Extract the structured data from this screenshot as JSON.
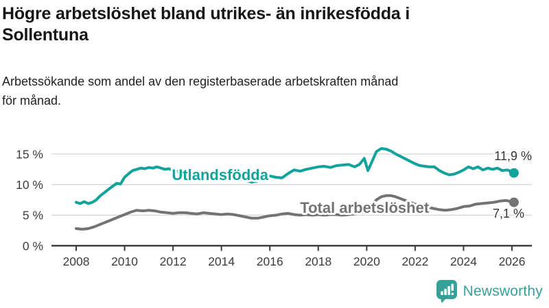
{
  "header": {
    "title_line1": "Högre arbetslöshet bland utrikes- än inrikesfödda i",
    "title_line2": "Sollentuna",
    "subtitle_line1": "Arbetssökande som andel av den registerbaserade arbetskraften månad",
    "subtitle_line2": "för månad."
  },
  "footer": {
    "brand": "Newsworthy",
    "logo_icon": "bar-chart-speech-bubble-icon",
    "brand_color": "#36a198"
  },
  "colors": {
    "teal_series": "#10a29b",
    "gray_series": "#737373",
    "axis": "#3b3b3b",
    "gridline": "#d9d9d9",
    "value_label": "#333333"
  },
  "chart_data": {
    "type": "line",
    "title": "Högre arbetslöshet bland utrikes- än inrikesfödda i Sollentuna",
    "subtitle": "Arbetssökande som andel av den registerbaserade arbetskraften månad för månad.",
    "grid": "horizontal",
    "x_axis": {
      "range": [
        2007.0,
        2026.9
      ],
      "ticks": [
        {
          "value": 2008,
          "label": "2008"
        },
        {
          "value": 2010,
          "label": "2010"
        },
        {
          "value": 2012,
          "label": "2012"
        },
        {
          "value": 2014,
          "label": "2014"
        },
        {
          "value": 2016,
          "label": "2016"
        },
        {
          "value": 2018,
          "label": "2018"
        },
        {
          "value": 2020,
          "label": "2020"
        },
        {
          "value": 2022,
          "label": "2022"
        },
        {
          "value": 2024,
          "label": "2024"
        },
        {
          "value": 2026,
          "label": "2026"
        }
      ]
    },
    "y_axis": {
      "range": [
        0,
        16.5
      ],
      "unit": "%",
      "ticks": [
        {
          "value": 0,
          "label": "0 %"
        },
        {
          "value": 5,
          "label": "5 %"
        },
        {
          "value": 10,
          "label": "10 %"
        },
        {
          "value": 15,
          "label": "15 %"
        }
      ]
    },
    "series": [
      {
        "id": "total",
        "name": "Total arbetslöshet",
        "color": "#737373",
        "end_value": 7.1,
        "end_label": "7,1 %",
        "end_label_pos": "below",
        "label_year": 2017.25,
        "label_value": 5.35,
        "values": [
          [
            2008.0,
            2.8
          ],
          [
            2008.25,
            2.7
          ],
          [
            2008.5,
            2.8
          ],
          [
            2008.75,
            3.1
          ],
          [
            2009.0,
            3.5
          ],
          [
            2009.25,
            3.9
          ],
          [
            2009.5,
            4.3
          ],
          [
            2009.75,
            4.7
          ],
          [
            2010.0,
            5.1
          ],
          [
            2010.25,
            5.5
          ],
          [
            2010.5,
            5.8
          ],
          [
            2010.75,
            5.7
          ],
          [
            2011.0,
            5.8
          ],
          [
            2011.25,
            5.7
          ],
          [
            2011.5,
            5.5
          ],
          [
            2011.75,
            5.4
          ],
          [
            2012.0,
            5.3
          ],
          [
            2012.25,
            5.4
          ],
          [
            2012.5,
            5.4
          ],
          [
            2012.75,
            5.3
          ],
          [
            2013.0,
            5.2
          ],
          [
            2013.25,
            5.4
          ],
          [
            2013.5,
            5.3
          ],
          [
            2013.75,
            5.2
          ],
          [
            2014.0,
            5.1
          ],
          [
            2014.25,
            5.2
          ],
          [
            2014.5,
            5.1
          ],
          [
            2014.75,
            4.9
          ],
          [
            2015.0,
            4.7
          ],
          [
            2015.25,
            4.5
          ],
          [
            2015.5,
            4.5
          ],
          [
            2015.75,
            4.7
          ],
          [
            2016.0,
            4.9
          ],
          [
            2016.25,
            5.0
          ],
          [
            2016.5,
            5.2
          ],
          [
            2016.75,
            5.3
          ],
          [
            2017.0,
            5.1
          ],
          [
            2017.25,
            5.0
          ],
          [
            2017.5,
            5.1
          ],
          [
            2017.75,
            5.0
          ],
          [
            2018.0,
            5.1
          ],
          [
            2018.25,
            5.0
          ],
          [
            2018.5,
            5.1
          ],
          [
            2018.75,
            5.1
          ],
          [
            2019.0,
            5.0
          ],
          [
            2019.25,
            5.1
          ],
          [
            2019.5,
            5.2
          ],
          [
            2019.75,
            5.4
          ],
          [
            2020.0,
            5.6
          ],
          [
            2020.2,
            6.7
          ],
          [
            2020.4,
            7.5
          ],
          [
            2020.6,
            8.0
          ],
          [
            2020.8,
            8.2
          ],
          [
            2021.0,
            8.2
          ],
          [
            2021.2,
            8.0
          ],
          [
            2021.4,
            7.7
          ],
          [
            2021.6,
            7.4
          ],
          [
            2021.8,
            7.1
          ],
          [
            2022.0,
            6.8
          ],
          [
            2022.25,
            6.5
          ],
          [
            2022.5,
            6.3
          ],
          [
            2022.75,
            6.1
          ],
          [
            2023.0,
            5.9
          ],
          [
            2023.25,
            5.8
          ],
          [
            2023.5,
            5.9
          ],
          [
            2023.75,
            6.1
          ],
          [
            2024.0,
            6.4
          ],
          [
            2024.25,
            6.5
          ],
          [
            2024.5,
            6.8
          ],
          [
            2024.75,
            6.9
          ],
          [
            2025.0,
            7.0
          ],
          [
            2025.25,
            7.1
          ],
          [
            2025.5,
            7.3
          ],
          [
            2025.75,
            7.4
          ],
          [
            2026.0,
            7.2
          ],
          [
            2026.08,
            7.1
          ]
        ]
      },
      {
        "id": "utlandsfodda",
        "name": "Utlandsfödda",
        "color": "#10a29b",
        "end_value": 11.9,
        "end_label": "11,9 %",
        "end_label_pos": "above",
        "label_year": 2011.95,
        "label_value": 10.75,
        "values": [
          [
            2008.0,
            7.1
          ],
          [
            2008.17,
            6.9
          ],
          [
            2008.33,
            7.2
          ],
          [
            2008.5,
            6.9
          ],
          [
            2008.67,
            7.1
          ],
          [
            2008.83,
            7.5
          ],
          [
            2009.0,
            8.2
          ],
          [
            2009.17,
            8.7
          ],
          [
            2009.33,
            9.2
          ],
          [
            2009.5,
            9.7
          ],
          [
            2009.67,
            10.2
          ],
          [
            2009.83,
            10.1
          ],
          [
            2010.0,
            11.2
          ],
          [
            2010.17,
            11.8
          ],
          [
            2010.33,
            12.3
          ],
          [
            2010.5,
            12.5
          ],
          [
            2010.67,
            12.7
          ],
          [
            2010.83,
            12.6
          ],
          [
            2011.0,
            12.8
          ],
          [
            2011.17,
            12.7
          ],
          [
            2011.33,
            12.9
          ],
          [
            2011.5,
            12.7
          ],
          [
            2011.67,
            12.5
          ],
          [
            2011.83,
            12.6
          ],
          [
            2012.0,
            12.3
          ],
          [
            2012.25,
            12.1
          ],
          [
            2012.5,
            12.0
          ],
          [
            2012.75,
            11.9
          ],
          [
            2013.0,
            11.8
          ],
          [
            2013.25,
            11.7
          ],
          [
            2013.5,
            11.6
          ],
          [
            2013.75,
            11.5
          ],
          [
            2014.0,
            11.4
          ],
          [
            2014.25,
            11.2
          ],
          [
            2014.5,
            11.1
          ],
          [
            2014.75,
            10.9
          ],
          [
            2015.0,
            10.7
          ],
          [
            2015.25,
            10.4
          ],
          [
            2015.5,
            10.6
          ],
          [
            2015.75,
            11.0
          ],
          [
            2016.0,
            11.4
          ],
          [
            2016.25,
            11.2
          ],
          [
            2016.5,
            11.1
          ],
          [
            2016.75,
            11.8
          ],
          [
            2017.0,
            12.4
          ],
          [
            2017.25,
            12.2
          ],
          [
            2017.5,
            12.5
          ],
          [
            2017.75,
            12.7
          ],
          [
            2018.0,
            12.9
          ],
          [
            2018.25,
            13.0
          ],
          [
            2018.5,
            12.8
          ],
          [
            2018.75,
            13.1
          ],
          [
            2019.0,
            13.2
          ],
          [
            2019.25,
            13.3
          ],
          [
            2019.5,
            12.9
          ],
          [
            2019.7,
            13.3
          ],
          [
            2019.9,
            14.3
          ],
          [
            2020.05,
            12.3
          ],
          [
            2020.2,
            13.6
          ],
          [
            2020.4,
            15.4
          ],
          [
            2020.6,
            15.9
          ],
          [
            2020.8,
            15.8
          ],
          [
            2021.0,
            15.5
          ],
          [
            2021.2,
            15.0
          ],
          [
            2021.4,
            14.6
          ],
          [
            2021.6,
            14.2
          ],
          [
            2021.8,
            13.8
          ],
          [
            2022.0,
            13.4
          ],
          [
            2022.2,
            13.1
          ],
          [
            2022.4,
            13.0
          ],
          [
            2022.6,
            12.9
          ],
          [
            2022.8,
            12.9
          ],
          [
            2023.0,
            12.3
          ],
          [
            2023.2,
            11.9
          ],
          [
            2023.4,
            11.6
          ],
          [
            2023.6,
            11.7
          ],
          [
            2023.8,
            12.0
          ],
          [
            2024.0,
            12.4
          ],
          [
            2024.2,
            12.9
          ],
          [
            2024.4,
            12.6
          ],
          [
            2024.6,
            12.9
          ],
          [
            2024.8,
            12.4
          ],
          [
            2025.0,
            12.7
          ],
          [
            2025.2,
            12.5
          ],
          [
            2025.4,
            12.7
          ],
          [
            2025.6,
            12.3
          ],
          [
            2025.8,
            12.4
          ],
          [
            2026.0,
            12.1
          ],
          [
            2026.08,
            11.9
          ]
        ]
      }
    ]
  }
}
